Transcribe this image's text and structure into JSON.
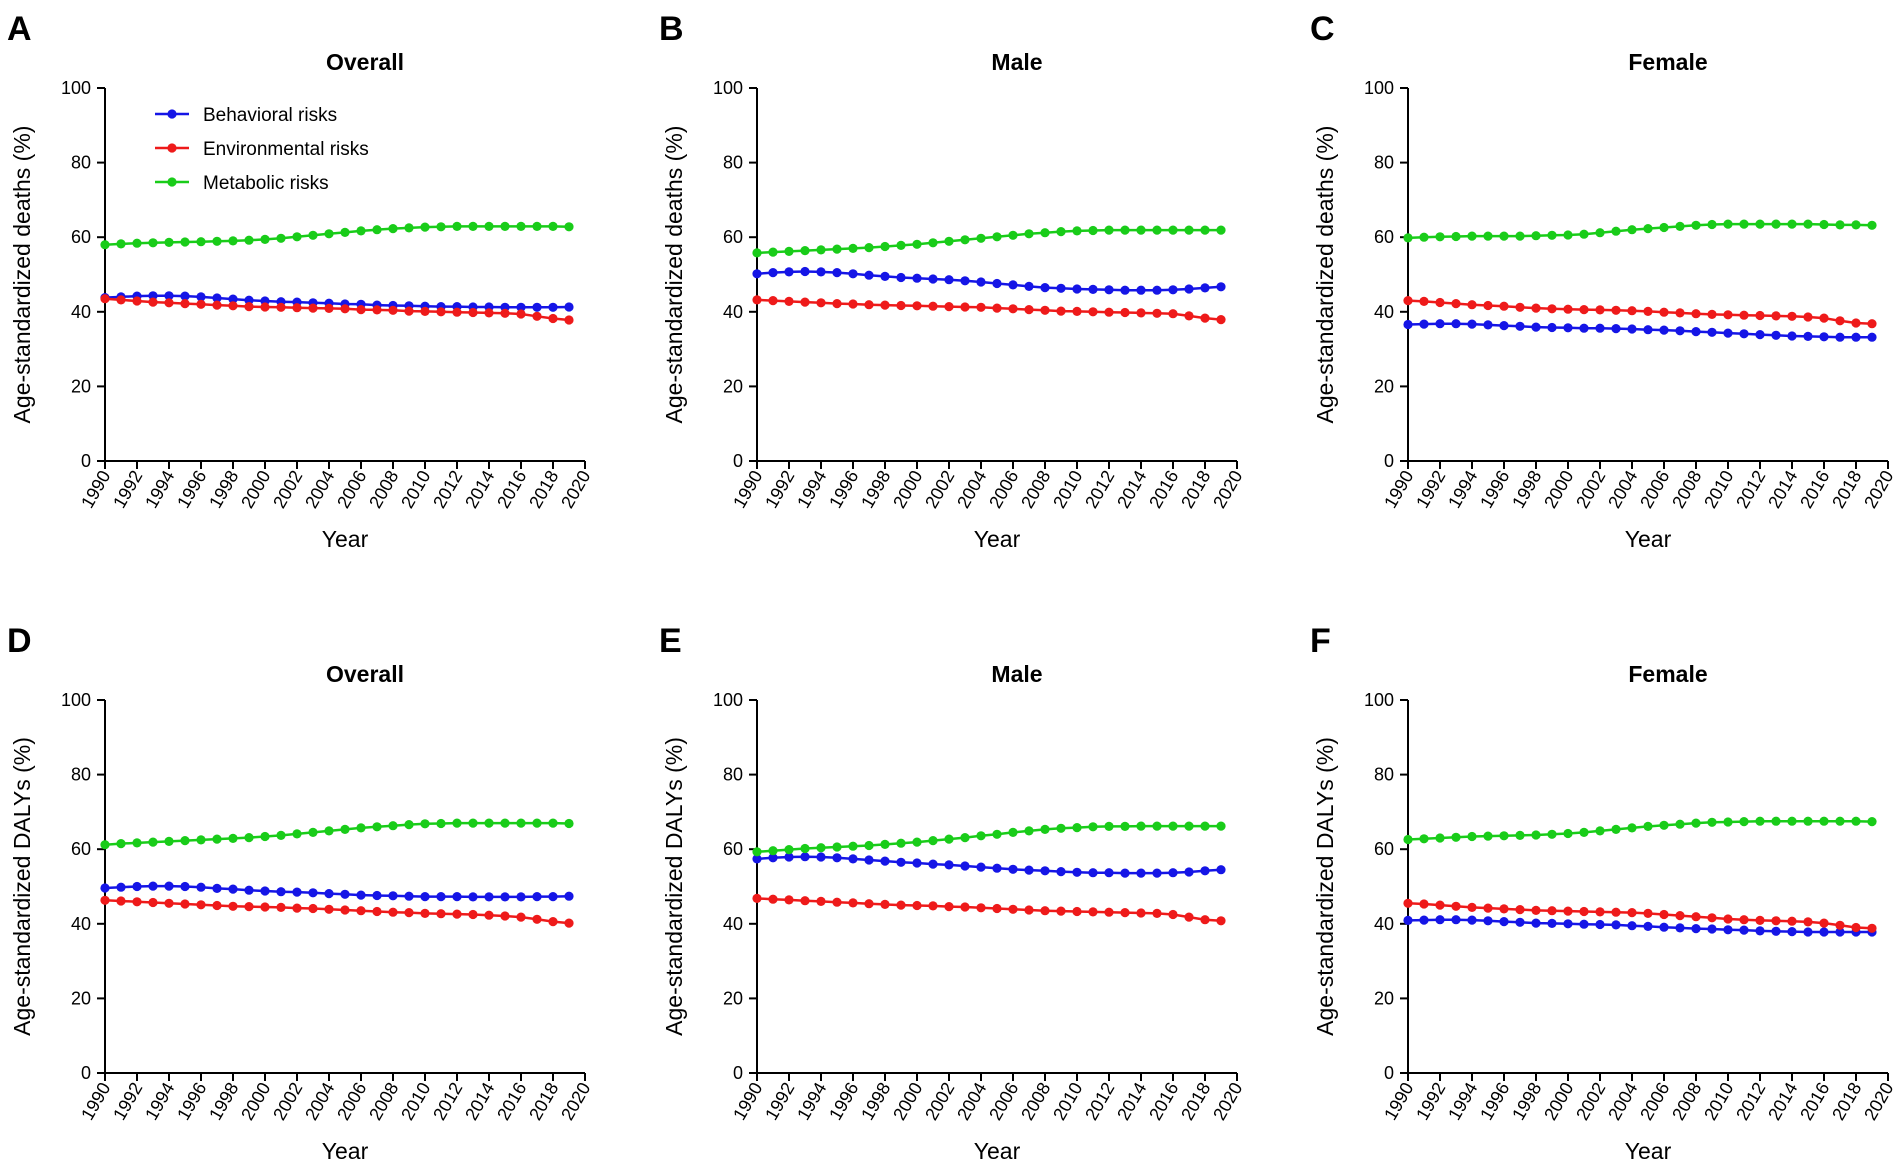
{
  "colors": {
    "behavioral": "#1515e6",
    "environmental": "#ee1a1a",
    "metabolic": "#19cc19"
  },
  "legend": [
    {
      "key": "behavioral",
      "label": "Behavioral risks"
    },
    {
      "key": "environmental",
      "label": "Environmental risks"
    },
    {
      "key": "metabolic",
      "label": "Metabolic risks"
    }
  ],
  "chart_data": [
    {
      "type": "line",
      "panel": "A",
      "title": "Overall",
      "xlabel": "Year",
      "ylabel": "Age-standardized deaths (%)",
      "xlim": [
        1990,
        2020
      ],
      "ylim": [
        0,
        100
      ],
      "xticks": [
        "1990",
        "1992",
        "1994",
        "1996",
        "1998",
        "2000",
        "2002",
        "2004",
        "2006",
        "2008",
        "2010",
        "2012",
        "2014",
        "2016",
        "2018",
        "2020"
      ],
      "yticks": [
        "0",
        "20",
        "40",
        "60",
        "80",
        "100"
      ],
      "legend": true,
      "x": [
        1990,
        1991,
        1992,
        1993,
        1994,
        1995,
        1996,
        1997,
        1998,
        1999,
        2000,
        2001,
        2002,
        2003,
        2004,
        2005,
        2006,
        2007,
        2008,
        2009,
        2010,
        2011,
        2012,
        2013,
        2014,
        2015,
        2016,
        2017,
        2018,
        2019
      ],
      "series": [
        {
          "name": "Behavioral risks",
          "key": "behavioral",
          "values": [
            43.8,
            44.0,
            44.2,
            44.3,
            44.3,
            44.2,
            44.0,
            43.7,
            43.4,
            43.1,
            42.9,
            42.7,
            42.6,
            42.4,
            42.3,
            42.1,
            42.0,
            41.8,
            41.7,
            41.6,
            41.5,
            41.4,
            41.4,
            41.3,
            41.3,
            41.2,
            41.2,
            41.2,
            41.2,
            41.3
          ]
        },
        {
          "name": "Environmental risks",
          "key": "environmental",
          "values": [
            43.5,
            43.2,
            42.9,
            42.6,
            42.4,
            42.2,
            42.0,
            41.8,
            41.6,
            41.4,
            41.3,
            41.2,
            41.1,
            41.0,
            40.9,
            40.8,
            40.6,
            40.5,
            40.4,
            40.2,
            40.1,
            40.0,
            39.9,
            39.8,
            39.7,
            39.6,
            39.4,
            38.8,
            38.2,
            37.8
          ]
        },
        {
          "name": "Metabolic risks",
          "key": "metabolic",
          "values": [
            58.0,
            58.2,
            58.4,
            58.5,
            58.6,
            58.7,
            58.8,
            58.9,
            59.0,
            59.2,
            59.4,
            59.7,
            60.1,
            60.5,
            60.9,
            61.3,
            61.7,
            62.0,
            62.3,
            62.5,
            62.7,
            62.8,
            62.9,
            62.9,
            62.9,
            62.9,
            62.9,
            62.9,
            62.9,
            62.8
          ]
        }
      ]
    },
    {
      "type": "line",
      "panel": "B",
      "title": "Male",
      "xlabel": "Year",
      "ylabel": "Age-standardized deaths (%)",
      "xlim": [
        1990,
        2020
      ],
      "ylim": [
        0,
        100
      ],
      "xticks": [
        "1990",
        "1992",
        "1994",
        "1996",
        "1998",
        "2000",
        "2002",
        "2004",
        "2006",
        "2008",
        "2010",
        "2012",
        "2014",
        "2016",
        "2018",
        "2020"
      ],
      "yticks": [
        "0",
        "20",
        "40",
        "60",
        "80",
        "100"
      ],
      "legend": false,
      "x": [
        1990,
        1991,
        1992,
        1993,
        1994,
        1995,
        1996,
        1997,
        1998,
        1999,
        2000,
        2001,
        2002,
        2003,
        2004,
        2005,
        2006,
        2007,
        2008,
        2009,
        2010,
        2011,
        2012,
        2013,
        2014,
        2015,
        2016,
        2017,
        2018,
        2019
      ],
      "series": [
        {
          "name": "Behavioral risks",
          "key": "behavioral",
          "values": [
            50.2,
            50.5,
            50.7,
            50.8,
            50.7,
            50.5,
            50.2,
            49.8,
            49.5,
            49.2,
            49.0,
            48.8,
            48.6,
            48.3,
            48.0,
            47.6,
            47.2,
            46.8,
            46.5,
            46.3,
            46.1,
            46.0,
            45.9,
            45.8,
            45.8,
            45.8,
            45.9,
            46.1,
            46.4,
            46.7
          ]
        },
        {
          "name": "Environmental risks",
          "key": "environmental",
          "values": [
            43.2,
            43.0,
            42.8,
            42.6,
            42.4,
            42.2,
            42.1,
            41.9,
            41.8,
            41.7,
            41.6,
            41.5,
            41.4,
            41.3,
            41.2,
            41.0,
            40.8,
            40.6,
            40.4,
            40.2,
            40.1,
            40.0,
            39.9,
            39.8,
            39.7,
            39.6,
            39.5,
            38.9,
            38.3,
            37.9
          ]
        },
        {
          "name": "Metabolic risks",
          "key": "metabolic",
          "values": [
            55.8,
            56.0,
            56.2,
            56.4,
            56.6,
            56.8,
            57.0,
            57.2,
            57.5,
            57.8,
            58.1,
            58.5,
            58.9,
            59.3,
            59.7,
            60.1,
            60.5,
            60.9,
            61.2,
            61.5,
            61.7,
            61.8,
            61.9,
            61.9,
            61.9,
            61.9,
            61.9,
            61.9,
            61.9,
            61.9
          ]
        }
      ]
    },
    {
      "type": "line",
      "panel": "C",
      "title": "Female",
      "xlabel": "Year",
      "ylabel": "Age-standardized deaths (%)",
      "xlim": [
        1990,
        2020
      ],
      "ylim": [
        0,
        100
      ],
      "xticks": [
        "1990",
        "1992",
        "1994",
        "1996",
        "1998",
        "2000",
        "2002",
        "2004",
        "2006",
        "2008",
        "2010",
        "2012",
        "2014",
        "2016",
        "2018",
        "2020"
      ],
      "yticks": [
        "0",
        "20",
        "40",
        "60",
        "80",
        "100"
      ],
      "legend": false,
      "x": [
        1990,
        1991,
        1992,
        1993,
        1994,
        1995,
        1996,
        1997,
        1998,
        1999,
        2000,
        2001,
        2002,
        2003,
        2004,
        2005,
        2006,
        2007,
        2008,
        2009,
        2010,
        2011,
        2012,
        2013,
        2014,
        2015,
        2016,
        2017,
        2018,
        2019
      ],
      "series": [
        {
          "name": "Behavioral risks",
          "key": "behavioral",
          "values": [
            36.6,
            36.7,
            36.8,
            36.8,
            36.7,
            36.5,
            36.3,
            36.1,
            35.9,
            35.8,
            35.7,
            35.6,
            35.6,
            35.5,
            35.4,
            35.2,
            35.1,
            34.9,
            34.7,
            34.5,
            34.3,
            34.1,
            33.9,
            33.7,
            33.5,
            33.4,
            33.3,
            33.2,
            33.2,
            33.2
          ]
        },
        {
          "name": "Environmental risks",
          "key": "environmental",
          "values": [
            43.0,
            42.8,
            42.5,
            42.2,
            41.9,
            41.7,
            41.5,
            41.2,
            41.0,
            40.8,
            40.7,
            40.6,
            40.5,
            40.4,
            40.3,
            40.1,
            39.9,
            39.7,
            39.5,
            39.3,
            39.2,
            39.1,
            39.0,
            38.9,
            38.8,
            38.6,
            38.3,
            37.6,
            37.0,
            36.8
          ]
        },
        {
          "name": "Metabolic risks",
          "key": "metabolic",
          "values": [
            59.8,
            60.0,
            60.1,
            60.2,
            60.3,
            60.3,
            60.3,
            60.3,
            60.4,
            60.5,
            60.6,
            60.8,
            61.2,
            61.6,
            62.0,
            62.3,
            62.6,
            62.9,
            63.2,
            63.4,
            63.5,
            63.5,
            63.5,
            63.5,
            63.5,
            63.5,
            63.4,
            63.3,
            63.3,
            63.2
          ]
        }
      ]
    },
    {
      "type": "line",
      "panel": "D",
      "title": "Overall",
      "xlabel": "Year",
      "ylabel": "Age-standardized DALYs (%)",
      "xlim": [
        1990,
        2020
      ],
      "ylim": [
        0,
        100
      ],
      "xticks": [
        "1990",
        "1992",
        "1994",
        "1996",
        "1998",
        "2000",
        "2002",
        "2004",
        "2006",
        "2008",
        "2010",
        "2012",
        "2014",
        "2016",
        "2018",
        "2020"
      ],
      "yticks": [
        "0",
        "20",
        "40",
        "60",
        "80",
        "100"
      ],
      "legend": false,
      "x": [
        1990,
        1991,
        1992,
        1993,
        1994,
        1995,
        1996,
        1997,
        1998,
        1999,
        2000,
        2001,
        2002,
        2003,
        2004,
        2005,
        2006,
        2007,
        2008,
        2009,
        2010,
        2011,
        2012,
        2013,
        2014,
        2015,
        2016,
        2017,
        2018,
        2019
      ],
      "series": [
        {
          "name": "Behavioral risks",
          "key": "behavioral",
          "values": [
            49.6,
            49.8,
            50.0,
            50.1,
            50.1,
            50.0,
            49.8,
            49.5,
            49.3,
            49.0,
            48.8,
            48.6,
            48.5,
            48.3,
            48.1,
            47.9,
            47.7,
            47.6,
            47.5,
            47.4,
            47.3,
            47.3,
            47.3,
            47.2,
            47.2,
            47.2,
            47.2,
            47.3,
            47.3,
            47.4
          ]
        },
        {
          "name": "Environmental risks",
          "key": "environmental",
          "values": [
            46.3,
            46.1,
            45.9,
            45.7,
            45.5,
            45.3,
            45.1,
            44.9,
            44.7,
            44.6,
            44.5,
            44.4,
            44.2,
            44.1,
            43.9,
            43.7,
            43.5,
            43.3,
            43.1,
            43.0,
            42.8,
            42.7,
            42.6,
            42.5,
            42.3,
            42.1,
            41.8,
            41.2,
            40.6,
            40.2
          ]
        },
        {
          "name": "Metabolic risks",
          "key": "metabolic",
          "values": [
            61.2,
            61.5,
            61.7,
            61.9,
            62.1,
            62.3,
            62.5,
            62.7,
            62.9,
            63.1,
            63.4,
            63.7,
            64.1,
            64.5,
            64.9,
            65.3,
            65.7,
            66.0,
            66.3,
            66.6,
            66.8,
            66.9,
            67.0,
            67.0,
            67.0,
            67.0,
            67.0,
            67.0,
            67.0,
            66.9
          ]
        }
      ]
    },
    {
      "type": "line",
      "panel": "E",
      "title": "Male",
      "xlabel": "Year",
      "ylabel": "Age-standardized DALYs (%)",
      "xlim": [
        1990,
        2020
      ],
      "ylim": [
        0,
        100
      ],
      "xticks": [
        "1990",
        "1992",
        "1994",
        "1996",
        "1998",
        "2000",
        "2002",
        "2004",
        "2006",
        "2008",
        "2010",
        "2012",
        "2014",
        "2016",
        "2018",
        "2020"
      ],
      "yticks": [
        "0",
        "20",
        "40",
        "60",
        "80",
        "100"
      ],
      "legend": false,
      "x": [
        1990,
        1991,
        1992,
        1993,
        1994,
        1995,
        1996,
        1997,
        1998,
        1999,
        2000,
        2001,
        2002,
        2003,
        2004,
        2005,
        2006,
        2007,
        2008,
        2009,
        2010,
        2011,
        2012,
        2013,
        2014,
        2015,
        2016,
        2017,
        2018,
        2019
      ],
      "series": [
        {
          "name": "Behavioral risks",
          "key": "behavioral",
          "values": [
            57.4,
            57.7,
            57.9,
            58.0,
            57.9,
            57.7,
            57.4,
            57.1,
            56.8,
            56.5,
            56.3,
            56.0,
            55.8,
            55.5,
            55.2,
            54.9,
            54.6,
            54.4,
            54.2,
            54.0,
            53.8,
            53.7,
            53.7,
            53.6,
            53.6,
            53.6,
            53.7,
            53.9,
            54.2,
            54.5
          ]
        },
        {
          "name": "Environmental risks",
          "key": "environmental",
          "values": [
            46.8,
            46.6,
            46.4,
            46.2,
            46.0,
            45.8,
            45.6,
            45.4,
            45.2,
            45.0,
            44.9,
            44.8,
            44.6,
            44.5,
            44.3,
            44.1,
            43.9,
            43.7,
            43.5,
            43.4,
            43.3,
            43.2,
            43.1,
            43.0,
            42.9,
            42.8,
            42.5,
            41.8,
            41.1,
            40.8
          ]
        },
        {
          "name": "Metabolic risks",
          "key": "metabolic",
          "values": [
            59.3,
            59.6,
            59.9,
            60.2,
            60.4,
            60.6,
            60.8,
            61.0,
            61.3,
            61.6,
            61.9,
            62.3,
            62.7,
            63.1,
            63.6,
            64.0,
            64.5,
            64.9,
            65.3,
            65.6,
            65.8,
            66.0,
            66.1,
            66.1,
            66.2,
            66.2,
            66.2,
            66.2,
            66.2,
            66.2
          ]
        }
      ]
    },
    {
      "type": "line",
      "panel": "F",
      "title": "Female",
      "xlabel": "Year",
      "ylabel": "Age-standardized DALYs (%)",
      "xlim": [
        1990,
        2020
      ],
      "ylim": [
        0,
        100
      ],
      "xticks": [
        "1990",
        "1992",
        "1994",
        "1996",
        "1998",
        "2000",
        "2002",
        "2004",
        "2006",
        "2008",
        "2010",
        "2012",
        "2014",
        "2016",
        "2018",
        "2020"
      ],
      "yticks": [
        "0",
        "20",
        "40",
        "60",
        "80",
        "100"
      ],
      "legend": false,
      "x": [
        1990,
        1991,
        1992,
        1993,
        1994,
        1995,
        1996,
        1997,
        1998,
        1999,
        2000,
        2001,
        2002,
        2003,
        2004,
        2005,
        2006,
        2007,
        2008,
        2009,
        2010,
        2011,
        2012,
        2013,
        2014,
        2015,
        2016,
        2017,
        2018,
        2019
      ],
      "series": [
        {
          "name": "Behavioral risks",
          "key": "behavioral",
          "values": [
            40.9,
            41.0,
            41.1,
            41.1,
            41.0,
            40.8,
            40.6,
            40.4,
            40.2,
            40.1,
            40.0,
            39.9,
            39.8,
            39.7,
            39.5,
            39.3,
            39.1,
            38.9,
            38.7,
            38.6,
            38.4,
            38.3,
            38.1,
            38.0,
            37.9,
            37.8,
            37.8,
            37.8,
            37.8,
            37.8
          ]
        },
        {
          "name": "Environmental risks",
          "key": "environmental",
          "values": [
            45.5,
            45.3,
            45.0,
            44.7,
            44.4,
            44.2,
            44.0,
            43.8,
            43.6,
            43.5,
            43.4,
            43.3,
            43.2,
            43.1,
            43.0,
            42.8,
            42.5,
            42.2,
            41.9,
            41.6,
            41.3,
            41.1,
            40.9,
            40.8,
            40.7,
            40.5,
            40.2,
            39.6,
            39.0,
            38.8
          ]
        },
        {
          "name": "Metabolic risks",
          "key": "metabolic",
          "values": [
            62.6,
            62.8,
            63.0,
            63.2,
            63.4,
            63.5,
            63.6,
            63.7,
            63.8,
            64.0,
            64.2,
            64.5,
            64.9,
            65.3,
            65.7,
            66.1,
            66.4,
            66.7,
            67.0,
            67.2,
            67.3,
            67.4,
            67.5,
            67.5,
            67.5,
            67.5,
            67.5,
            67.5,
            67.5,
            67.4
          ]
        }
      ]
    }
  ]
}
